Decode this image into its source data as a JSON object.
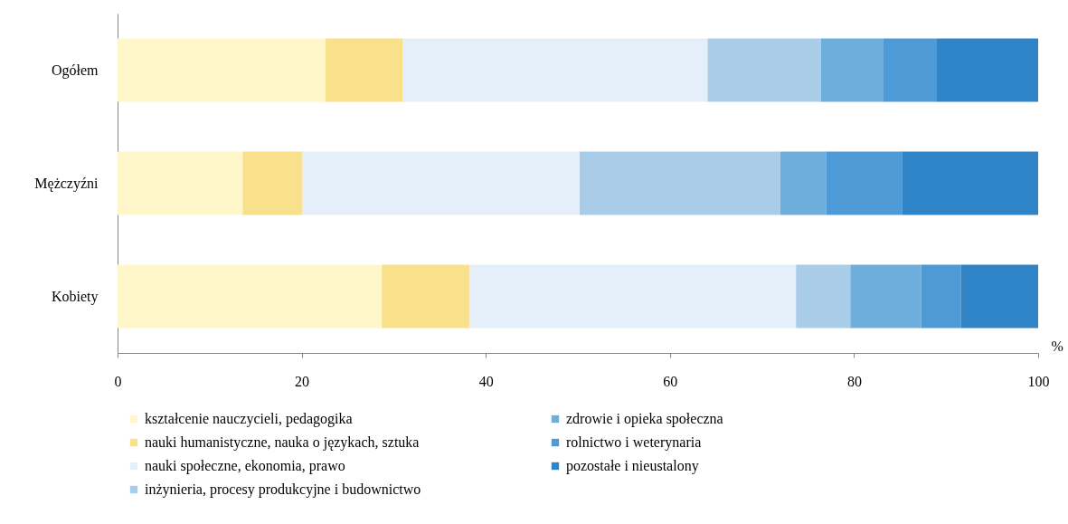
{
  "chart_data": {
    "type": "bar",
    "orientation": "horizontal",
    "stacked": true,
    "xlabel": "%",
    "categories": [
      "Ogółem",
      "Mężczyźni",
      "Kobiety"
    ],
    "xlim": [
      0,
      100
    ],
    "xticks": [
      0,
      20,
      40,
      60,
      80,
      100
    ],
    "grid": false,
    "legend": "bottom",
    "series": [
      {
        "name": "kształcenie nauczycieli, pedagogika",
        "color": "#fff7c9",
        "values": [
          22.6,
          13.6,
          28.7
        ]
      },
      {
        "name": "nauki humanistyczne, nauka o językach, sztuka",
        "color": "#f9e08a",
        "values": [
          8.4,
          6.5,
          9.5
        ]
      },
      {
        "name": "nauki społeczne, ekonomia, prawo",
        "color": "#e5eff9",
        "values": [
          33.1,
          30.1,
          35.5
        ]
      },
      {
        "name": "inżynieria, procesy produkcyjne i budownictwo",
        "color": "#a9cde9",
        "values": [
          12.3,
          21.8,
          5.9
        ]
      },
      {
        "name": "zdrowie i opieka społeczna",
        "color": "#6eaedc",
        "values": [
          6.8,
          5.0,
          7.7
        ]
      },
      {
        "name": "rolnictwo i weterynaria",
        "color": "#4e9ad6",
        "values": [
          5.8,
          8.2,
          4.3
        ]
      },
      {
        "name": "pozostałe i nieustalony",
        "color": "#2e84c6",
        "values": [
          11.0,
          14.8,
          8.4
        ]
      }
    ]
  }
}
